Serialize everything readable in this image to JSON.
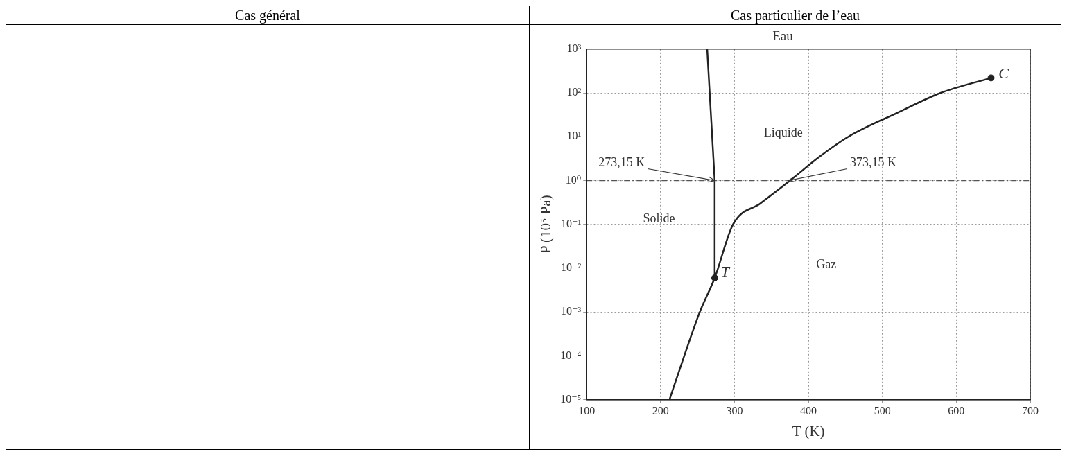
{
  "chart_data": {
    "type": "line",
    "title": "Eau",
    "xlabel": "T (K)",
    "ylabel": "P (10⁵ Pa)",
    "xlim": [
      100,
      700
    ],
    "xticks": [
      100,
      200,
      300,
      400,
      500,
      600,
      700
    ],
    "ylim": [
      1e-05,
      1000
    ],
    "yticks": [
      {
        "value": 1e-05,
        "label": "10⁻⁵"
      },
      {
        "value": 0.0001,
        "label": "10⁻⁴"
      },
      {
        "value": 0.001,
        "label": "10⁻³"
      },
      {
        "value": 0.01,
        "label": "10⁻²"
      },
      {
        "value": 0.1,
        "label": "10⁻¹"
      },
      {
        "value": 1,
        "label": "10⁰"
      },
      {
        "value": 10,
        "label": "10¹"
      },
      {
        "value": 100,
        "label": "10²"
      },
      {
        "value": 1000,
        "label": "10³"
      }
    ],
    "log": "y",
    "grid": true,
    "legend": false,
    "series": [
      {
        "color": "#222222",
        "marker": "none",
        "line_style": "solid",
        "x": [
          212,
          232,
          253,
          273.16,
          298,
          335,
          375,
          415,
          454,
          520,
          579,
          647
        ],
        "values": [
          1e-05,
          0.0001,
          0.001,
          0.006,
          0.1,
          0.3,
          1,
          3.5,
          10,
          35,
          100,
          220
        ]
      },
      {
        "color": "#222222",
        "marker": "none",
        "line_style": "solid",
        "x": [
          273.16,
          273.15,
          263
        ],
        "values": [
          0.006,
          1,
          1000
        ]
      },
      {
        "type": "scatter",
        "color": "#222222",
        "marker": "circle",
        "x": [
          273.16,
          647
        ],
        "values": [
          0.006,
          220
        ]
      }
    ],
    "ref_lines": [
      {
        "axis": "y",
        "value": 1,
        "line_style": "dashdot",
        "color": "#555555"
      }
    ],
    "annotations": [
      "Cas général",
      "Cas particulier de l’eau",
      {
        "text": "273,15 K",
        "x": 273.15,
        "y": 1
      },
      {
        "text": "373,15 K",
        "x": 373.15,
        "y": 1
      },
      "Liquide",
      "Solide",
      "Gaz",
      {
        "text": "T",
        "x": 273.16,
        "y": 0.006
      },
      {
        "text": "C",
        "x": 647,
        "y": 220
      }
    ]
  }
}
